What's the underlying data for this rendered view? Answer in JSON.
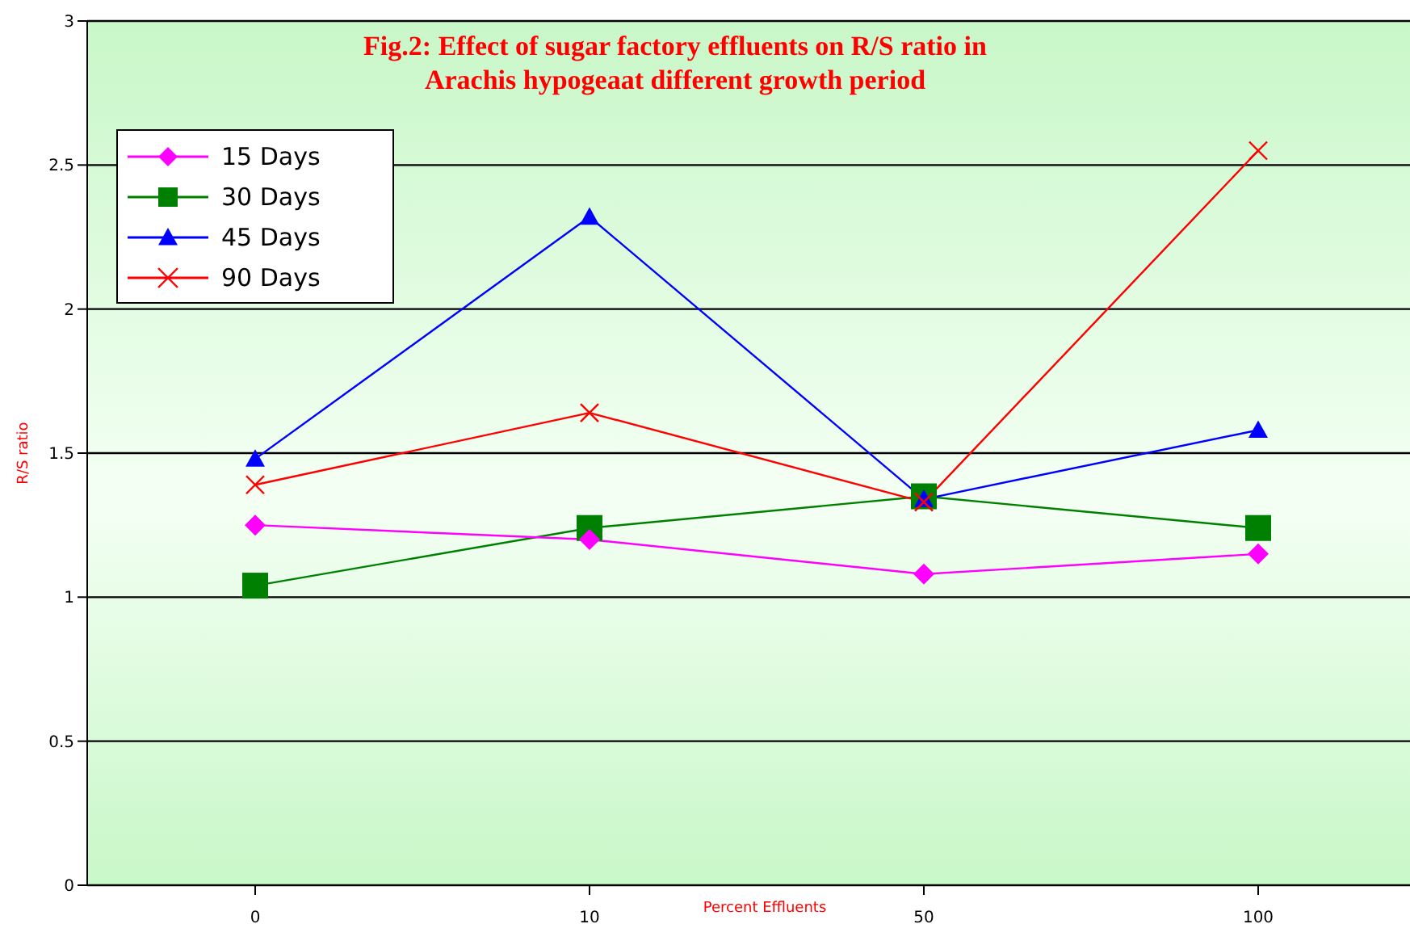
{
  "chart_data": {
    "type": "line",
    "title": "Fig.2: Effect of sugar factory effluents on R/S ratio in\nArachis hypogeaat different growth period",
    "xlabel": "Percent Effluents",
    "ylabel": "R/S ratio",
    "categories": [
      "0",
      "10",
      "50",
      "100"
    ],
    "series": [
      {
        "name": "15 Days",
        "color": "#ff00ff",
        "marker": "diamond",
        "values": [
          1.25,
          1.2,
          1.08,
          1.15
        ]
      },
      {
        "name": "30 Days",
        "color": "#008000",
        "marker": "square",
        "values": [
          1.04,
          1.24,
          1.35,
          1.24
        ]
      },
      {
        "name": "45 Days",
        "color": "#0000ff",
        "marker": "triangle",
        "values": [
          1.48,
          2.32,
          1.34,
          1.58
        ]
      },
      {
        "name": "90 Days",
        "color": "#ff0000",
        "marker": "cross",
        "values": [
          1.39,
          1.64,
          1.33,
          2.55
        ]
      }
    ],
    "ylim": [
      0,
      3
    ],
    "yticks": [
      0,
      0.5,
      1,
      1.5,
      2,
      2.5,
      3
    ],
    "grid": "y",
    "legend": "top left"
  }
}
